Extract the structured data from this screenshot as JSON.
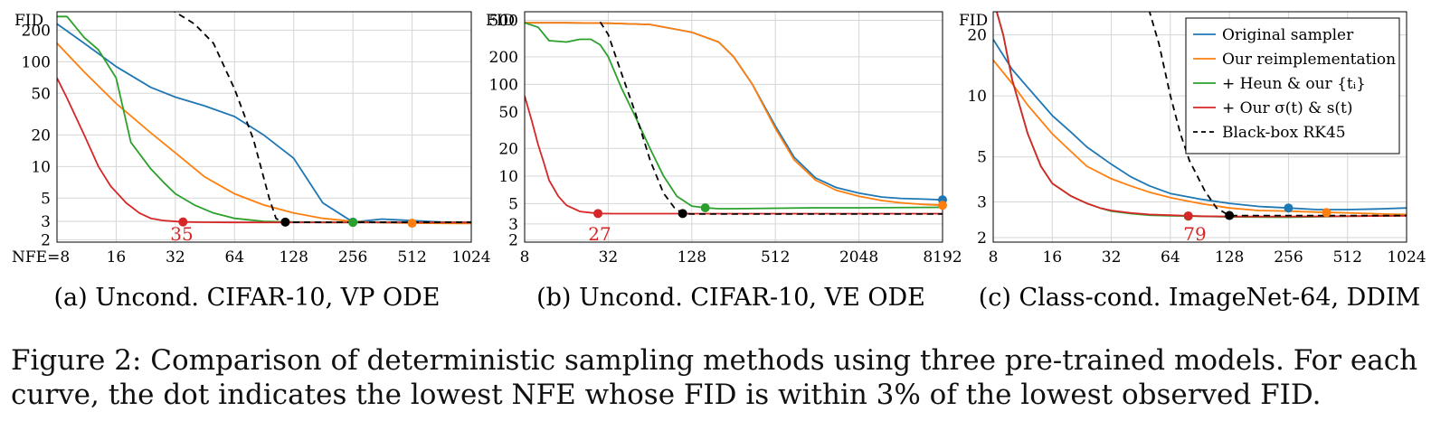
{
  "caption": {
    "line1": "Figure 2: Comparison of deterministic sampling methods using three pre-trained models. For each",
    "line2": "curve, the dot indicates the lowest NFE whose FID is within 3% of the lowest observed FID."
  },
  "legend": {
    "position": "top-right of panel (c)",
    "entries": [
      {
        "name": "Original sampler",
        "color": "#1f77b4",
        "style": "solid"
      },
      {
        "name": "Our reimplementation",
        "color": "#ff7f0e",
        "style": "solid"
      },
      {
        "name": "+ Heun & our {tᵢ}",
        "color": "#2ca02c",
        "style": "solid"
      },
      {
        "name": "+ Our σ(t) & s(t)",
        "color": "#d62728",
        "style": "solid"
      },
      {
        "name": "Black-box RK45",
        "color": "#000000",
        "style": "dashed"
      }
    ]
  },
  "chart_data": [
    {
      "type": "line",
      "title": "(a) Uncond. CIFAR-10, VP ODE",
      "xlabel": "NFE",
      "ylabel": "FID",
      "xscale": "log2",
      "yscale": "log",
      "xlim": [
        8,
        1024
      ],
      "ylim": [
        1.9,
        300
      ],
      "xticks": [
        8,
        16,
        32,
        64,
        128,
        256,
        512,
        1024
      ],
      "xtick_labels": [
        "NFE=8",
        "16",
        "32",
        "64",
        "128",
        "256",
        "512",
        "1024"
      ],
      "yticks": [
        2,
        3,
        5,
        10,
        20,
        50,
        100,
        200
      ],
      "grid": true,
      "annotation": {
        "text": "35",
        "x": 35,
        "y": 2.4,
        "color": "#d62728"
      },
      "series": [
        {
          "name": "Original sampler",
          "x": [
            8,
            11,
            16,
            24,
            32,
            45,
            64,
            90,
            128,
            180,
            256,
            360,
            512,
            720,
            1024
          ],
          "y": [
            230,
            150,
            90,
            57,
            46,
            38,
            30,
            20,
            12,
            4.5,
            2.95,
            3.15,
            3.05,
            2.95,
            2.9
          ],
          "dot": [
            256,
            2.95
          ]
        },
        {
          "name": "Our reimplementation",
          "x": [
            8,
            11,
            16,
            24,
            32,
            45,
            64,
            90,
            128,
            180,
            256,
            360,
            512,
            720,
            1024
          ],
          "y": [
            150,
            80,
            40,
            21,
            13.5,
            8,
            5.5,
            4.3,
            3.6,
            3.2,
            3.0,
            2.92,
            2.88,
            2.87,
            2.86
          ],
          "dot": [
            512,
            2.88
          ]
        },
        {
          "name": "+ Heun & our {tᵢ}",
          "x": [
            8,
            9,
            11,
            13,
            16,
            19,
            24,
            28,
            32,
            40,
            50,
            64,
            90,
            128,
            180,
            256,
            512,
            1024
          ],
          "y": [
            270,
            270,
            170,
            130,
            70,
            17,
            9.5,
            7,
            5.5,
            4.3,
            3.6,
            3.2,
            3.0,
            2.95,
            2.93,
            2.93,
            2.93,
            2.93
          ],
          "dot": [
            256,
            2.93
          ]
        },
        {
          "name": "+ Our σ(t) & s(t)",
          "x": [
            8,
            9,
            11,
            13,
            15,
            18,
            21,
            24,
            28,
            35,
            45,
            64,
            128,
            256,
            512,
            1024
          ],
          "y": [
            70,
            45,
            20,
            10,
            6.5,
            4.5,
            3.6,
            3.2,
            3.05,
            2.96,
            2.94,
            2.93,
            2.93,
            2.93,
            2.93,
            2.93
          ],
          "dot": [
            35,
            2.96
          ]
        },
        {
          "name": "Black-box RK45",
          "x": [
            30,
            40,
            50,
            64,
            80,
            96,
            104,
            110,
            116,
            128,
            256,
            512,
            1024
          ],
          "y": [
            320,
            230,
            150,
            55,
            18,
            5,
            3.2,
            3.0,
            2.95,
            2.94,
            2.94,
            2.94,
            2.94
          ],
          "dot": [
            116,
            2.95
          ]
        }
      ]
    },
    {
      "type": "line",
      "title": "(b) Uncond. CIFAR-10, VE ODE",
      "xlabel": "",
      "ylabel": "FID",
      "xscale": "log2",
      "yscale": "log",
      "xlim": [
        8,
        8192
      ],
      "ylim": [
        1.9,
        620
      ],
      "xticks": [
        8,
        32,
        128,
        512,
        2048,
        8192
      ],
      "xtick_labels": [
        "8",
        "32",
        "128",
        "512",
        "2048",
        "8192"
      ],
      "yticks": [
        2,
        3,
        5,
        10,
        20,
        50,
        100,
        200,
        500
      ],
      "grid": true,
      "annotation": {
        "text": "27",
        "x": 27,
        "y": 2.4,
        "color": "#d62728"
      },
      "series": [
        {
          "name": "Original sampler",
          "x": [
            8,
            16,
            32,
            64,
            128,
            200,
            256,
            350,
            512,
            700,
            1000,
            1400,
            2048,
            3000,
            4096,
            6000,
            8192
          ],
          "y": [
            470,
            470,
            465,
            450,
            370,
            290,
            200,
            100,
            35,
            16,
            9.5,
            7.5,
            6.5,
            5.9,
            5.7,
            5.6,
            5.5
          ],
          "dot": [
            8192,
            5.5
          ]
        },
        {
          "name": "Our reimplementation",
          "x": [
            8,
            16,
            32,
            64,
            128,
            200,
            256,
            350,
            512,
            700,
            1000,
            1400,
            2048,
            3000,
            4096,
            6000,
            8192
          ],
          "y": [
            470,
            470,
            465,
            450,
            370,
            290,
            200,
            100,
            33,
            15,
            9,
            7,
            6,
            5.4,
            5.1,
            4.9,
            4.8
          ],
          "dot": [
            8192,
            4.8
          ]
        },
        {
          "name": "+ Heun & our {tᵢ}",
          "x": [
            8,
            10,
            12,
            16,
            20,
            24,
            28,
            32,
            40,
            50,
            64,
            80,
            100,
            128,
            160,
            200,
            256,
            512,
            1024,
            2048,
            8192
          ],
          "y": [
            470,
            420,
            300,
            290,
            310,
            310,
            270,
            200,
            90,
            45,
            20,
            10,
            6,
            4.7,
            4.5,
            4.4,
            4.4,
            4.45,
            4.5,
            4.5,
            4.55
          ],
          "dot": [
            160,
            4.5
          ]
        },
        {
          "name": "+ Our σ(t) & s(t)",
          "x": [
            8,
            9,
            10,
            11,
            12,
            14,
            16,
            20,
            27,
            35,
            64,
            128,
            256,
            512,
            8192
          ],
          "y": [
            75,
            40,
            22,
            14,
            9,
            6,
            4.8,
            4.1,
            3.9,
            3.88,
            3.88,
            3.88,
            3.88,
            3.88,
            3.88
          ],
          "dot": [
            27,
            3.9
          ]
        },
        {
          "name": "Black-box RK45",
          "x": [
            28,
            32,
            40,
            50,
            64,
            80,
            96,
            110,
            128,
            256,
            512,
            8192
          ],
          "y": [
            480,
            350,
            130,
            50,
            15,
            6.5,
            4.5,
            3.9,
            3.85,
            3.85,
            3.85,
            3.85
          ],
          "dot": [
            110,
            3.9
          ]
        }
      ]
    },
    {
      "type": "line",
      "title": "(c) Class-cond. ImageNet-64, DDIM",
      "xlabel": "",
      "ylabel": "FID",
      "xscale": "log2",
      "yscale": "log",
      "xlim": [
        8,
        1024
      ],
      "ylim": [
        1.9,
        26
      ],
      "xticks": [
        8,
        16,
        32,
        64,
        128,
        256,
        512,
        1024
      ],
      "xtick_labels": [
        "8",
        "16",
        "32",
        "64",
        "128",
        "256",
        "512",
        "1024"
      ],
      "yticks": [
        2,
        3,
        5,
        10,
        20
      ],
      "grid": true,
      "annotation": {
        "text": "79",
        "x": 79,
        "y": 2.2,
        "color": "#d62728"
      },
      "series": [
        {
          "name": "Original sampler",
          "x": [
            8,
            10,
            12,
            16,
            20,
            24,
            32,
            40,
            50,
            64,
            90,
            128,
            180,
            256,
            360,
            512,
            720,
            1024
          ],
          "y": [
            19,
            13.5,
            11,
            8,
            6.6,
            5.6,
            4.6,
            4.0,
            3.6,
            3.3,
            3.1,
            2.95,
            2.85,
            2.8,
            2.75,
            2.75,
            2.77,
            2.8
          ],
          "dot": [
            256,
            2.8
          ]
        },
        {
          "name": "Our reimplementation",
          "x": [
            8,
            10,
            12,
            16,
            20,
            24,
            32,
            40,
            50,
            64,
            90,
            128,
            180,
            256,
            360,
            512,
            720,
            1024
          ],
          "y": [
            15,
            11.5,
            9,
            6.5,
            5.3,
            4.5,
            3.9,
            3.6,
            3.35,
            3.15,
            2.95,
            2.8,
            2.72,
            2.7,
            2.67,
            2.65,
            2.62,
            2.6
          ],
          "dot": [
            400,
            2.66
          ]
        },
        {
          "name": "+ Heun & our {tᵢ}",
          "x": [
            8,
            9,
            10,
            12,
            14,
            16,
            20,
            24,
            28,
            32,
            40,
            50,
            64,
            90,
            128,
            256,
            512,
            1024
          ],
          "y": [
            30,
            20,
            12,
            6.5,
            4.5,
            3.7,
            3.2,
            2.95,
            2.8,
            2.7,
            2.63,
            2.58,
            2.56,
            2.55,
            2.53,
            2.52,
            2.55,
            2.57
          ],
          "dot": [
            79,
            2.55
          ]
        },
        {
          "name": "+ Our σ(t) & s(t)",
          "x": [
            8,
            9,
            10,
            12,
            14,
            16,
            20,
            24,
            28,
            32,
            40,
            50,
            64,
            79,
            90,
            128,
            256,
            512,
            1024
          ],
          "y": [
            30,
            20,
            12,
            6.5,
            4.5,
            3.7,
            3.2,
            2.95,
            2.8,
            2.72,
            2.65,
            2.6,
            2.58,
            2.56,
            2.55,
            2.54,
            2.54,
            2.55,
            2.56
          ],
          "dot": [
            79,
            2.56
          ]
        },
        {
          "name": "Black-box RK45",
          "x": [
            48,
            56,
            64,
            72,
            80,
            96,
            110,
            128,
            256,
            512,
            1024
          ],
          "y": [
            30,
            18,
            10,
            6.5,
            4.8,
            3.4,
            2.8,
            2.57,
            2.57,
            2.57,
            2.57
          ],
          "dot": [
            128,
            2.57
          ]
        }
      ]
    }
  ]
}
